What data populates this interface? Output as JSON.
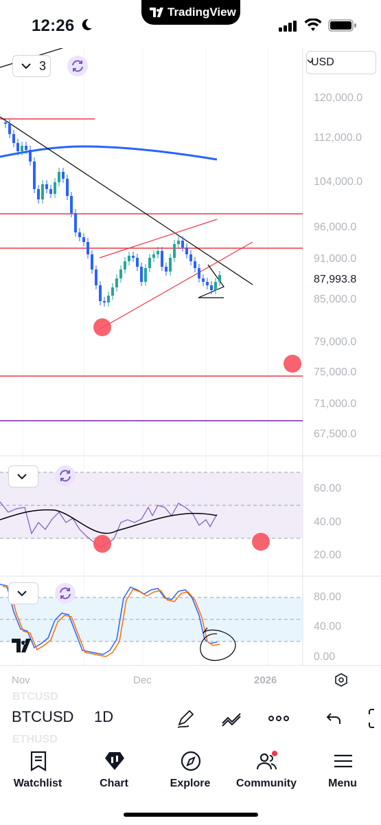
{
  "status_bar": {
    "time": "12:26",
    "app_name": "TradingView",
    "icons": [
      "moon-icon",
      "signal-icon",
      "wifi-icon",
      "battery-icon"
    ]
  },
  "main_pane": {
    "currency": "USD",
    "indicator_count": "3",
    "price_labels": [
      "120,000.0",
      "112,000.0",
      "104,000.0",
      "96,000.0",
      "91,000.0",
      "85,000.0",
      "79,000.0",
      "75,000.0",
      "71,000.0",
      "67,500.0"
    ],
    "current_price": "87,993.8"
  },
  "rsi_pane": {
    "labels": [
      "60.00",
      "40.00",
      "20.00"
    ]
  },
  "stoch_pane": {
    "labels": [
      "80.00",
      "40.00",
      "0.00"
    ]
  },
  "date_axis": {
    "labels": [
      "Nov",
      "Dec",
      "2026"
    ]
  },
  "toolbar": {
    "symbol": "BTCUSD",
    "interval": "1D",
    "ghost_above": "BTCUSD",
    "ghost_below": "ETHUSD",
    "icons": [
      "pen-icon",
      "indicators-icon",
      "more-icon",
      "undo-icon",
      "fullscreen-icon"
    ]
  },
  "nav": {
    "items": [
      {
        "label": "Watchlist",
        "icon": "watchlist-icon"
      },
      {
        "label": "Chart",
        "icon": "chart-icon"
      },
      {
        "label": "Explore",
        "icon": "explore-icon"
      },
      {
        "label": "Community",
        "icon": "community-icon"
      },
      {
        "label": "Menu",
        "icon": "menu-icon"
      }
    ]
  },
  "colors": {
    "accent": "#2962ff",
    "red_line": "#f23645",
    "purple": "#7e57c2",
    "marker": "#f7525f",
    "up": "#26a69a",
    "down": "#2962ff"
  }
}
